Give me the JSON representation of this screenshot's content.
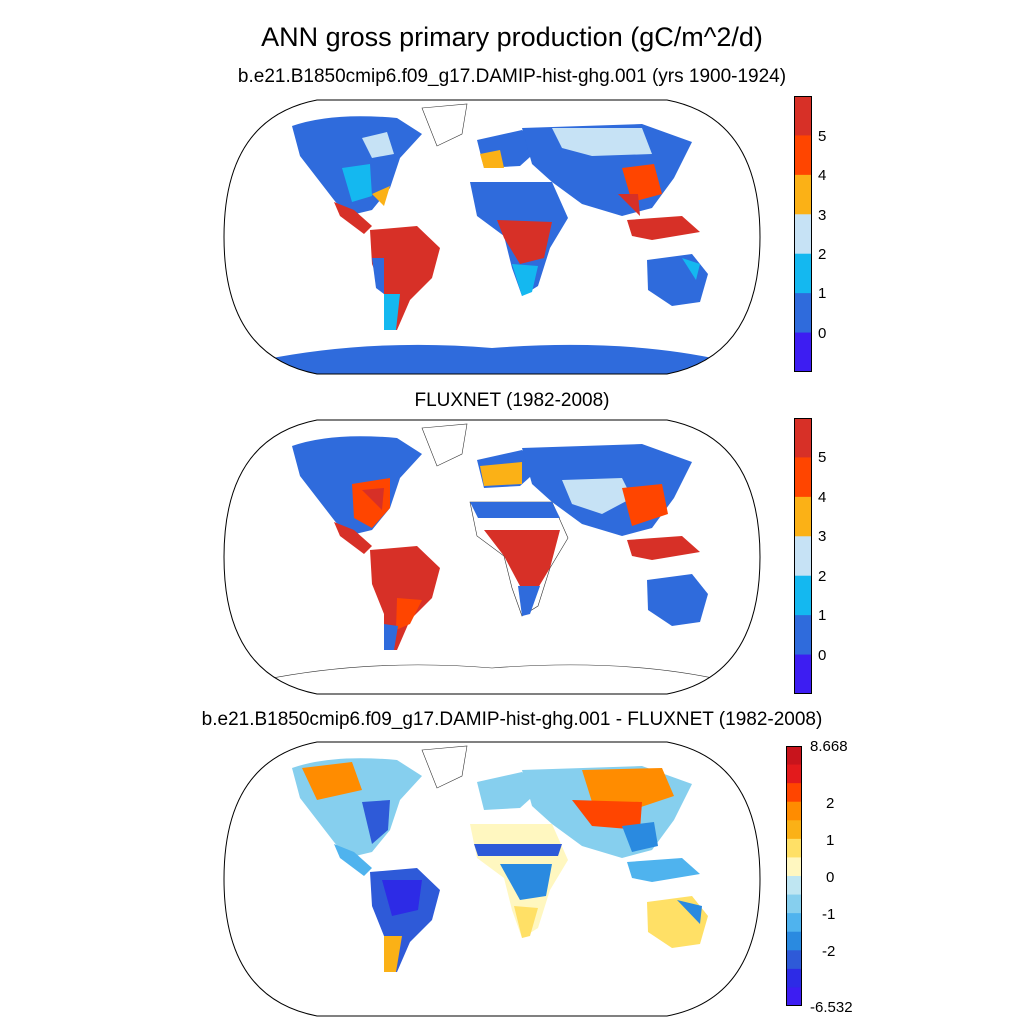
{
  "title": "ANN gross primary production (gC/m^2/d)",
  "panels": [
    {
      "id": "model",
      "subtitle": "b.e21.B1850cmip6.f09_g17.DAMIP-hist-ghg.001 (yrs 1900-1924)",
      "colorbar": {
        "labels": [
          "5",
          "4",
          "3",
          "2",
          "1",
          "0"
        ],
        "colors": [
          "#d73027",
          "#ff4500",
          "#fbb116",
          "#c6e2f5",
          "#14b8f0",
          "#2f6bdc",
          "#3d1df2"
        ]
      }
    },
    {
      "id": "obs",
      "subtitle": "FLUXNET (1982-2008)",
      "colorbar": {
        "labels": [
          "5",
          "4",
          "3",
          "2",
          "1",
          "0"
        ],
        "colors": [
          "#d73027",
          "#ff4500",
          "#fbb116",
          "#c6e2f5",
          "#14b8f0",
          "#2f6bdc",
          "#3d1df2"
        ]
      }
    },
    {
      "id": "diff",
      "subtitle": "b.e21.B1850cmip6.f09_g17.DAMIP-hist-ghg.001 - FLUXNET (1982-2008)",
      "colorbar": {
        "labels": [
          "8.668",
          "2",
          "1",
          "0",
          "-1",
          "-2",
          "-6.532"
        ],
        "colors": [
          "#c8141c",
          "#e31a1c",
          "#ff4500",
          "#ff8c00",
          "#fbb116",
          "#ffe066",
          "#fff7c0",
          "#bfe6f2",
          "#86cfee",
          "#4fb3ee",
          "#2a8ae0",
          "#2e5ad8",
          "#2d2be6",
          "#3d1df2"
        ]
      }
    }
  ]
}
